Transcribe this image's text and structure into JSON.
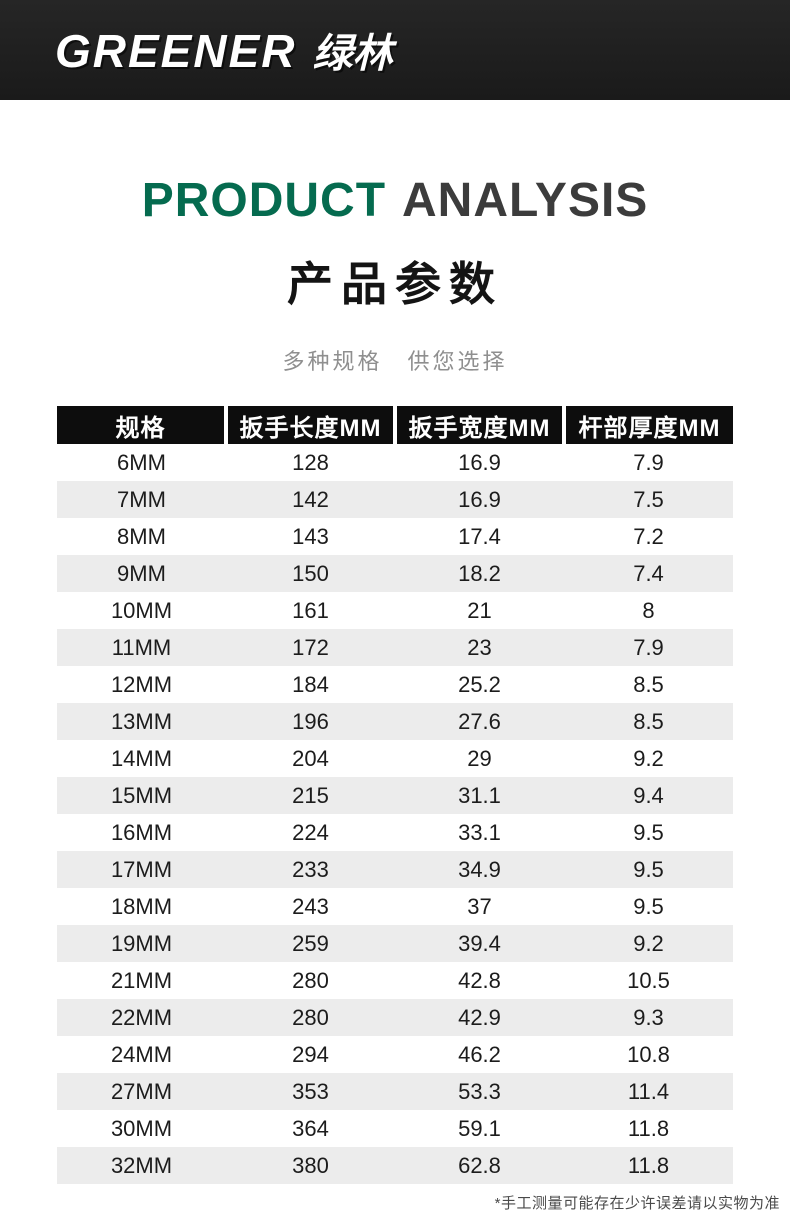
{
  "brand": {
    "logo_en": "GREENER",
    "logo_cn": "绿林"
  },
  "title": {
    "en_word1": "PRODUCT",
    "en_word2": "ANALYSIS",
    "cn": "产品参数",
    "subtitle": "多种规格 供您选择"
  },
  "footnote": "*手工测量可能存在少许误差请以实物为准",
  "colors": {
    "topbar_bg": "#1f1f1f",
    "title_green": "#056b4f",
    "title_dark": "#3c3c3c",
    "table_header_bg": "#0d0d0d",
    "row_alt": "#ececec",
    "subtitle_gray": "#8f8f8f"
  },
  "chart_data": {
    "type": "table",
    "title": "PRODUCT ANALYSIS 产品参数",
    "subtitle": "多种规格 供您选择",
    "columns": [
      "规格",
      "扳手长度MM",
      "扳手宽度MM",
      "杆部厚度MM"
    ],
    "rows": [
      [
        "6MM",
        "128",
        "16.9",
        "7.9"
      ],
      [
        "7MM",
        "142",
        "16.9",
        "7.5"
      ],
      [
        "8MM",
        "143",
        "17.4",
        "7.2"
      ],
      [
        "9MM",
        "150",
        "18.2",
        "7.4"
      ],
      [
        "10MM",
        "161",
        "21",
        "8"
      ],
      [
        "11MM",
        "172",
        "23",
        "7.9"
      ],
      [
        "12MM",
        "184",
        "25.2",
        "8.5"
      ],
      [
        "13MM",
        "196",
        "27.6",
        "8.5"
      ],
      [
        "14MM",
        "204",
        "29",
        "9.2"
      ],
      [
        "15MM",
        "215",
        "31.1",
        "9.4"
      ],
      [
        "16MM",
        "224",
        "33.1",
        "9.5"
      ],
      [
        "17MM",
        "233",
        "34.9",
        "9.5"
      ],
      [
        "18MM",
        "243",
        "37",
        "9.5"
      ],
      [
        "19MM",
        "259",
        "39.4",
        "9.2"
      ],
      [
        "21MM",
        "280",
        "42.8",
        "10.5"
      ],
      [
        "22MM",
        "280",
        "42.9",
        "9.3"
      ],
      [
        "24MM",
        "294",
        "46.2",
        "10.8"
      ],
      [
        "27MM",
        "353",
        "53.3",
        "11.4"
      ],
      [
        "30MM",
        "364",
        "59.1",
        "11.8"
      ],
      [
        "32MM",
        "380",
        "62.8",
        "11.8"
      ]
    ]
  }
}
